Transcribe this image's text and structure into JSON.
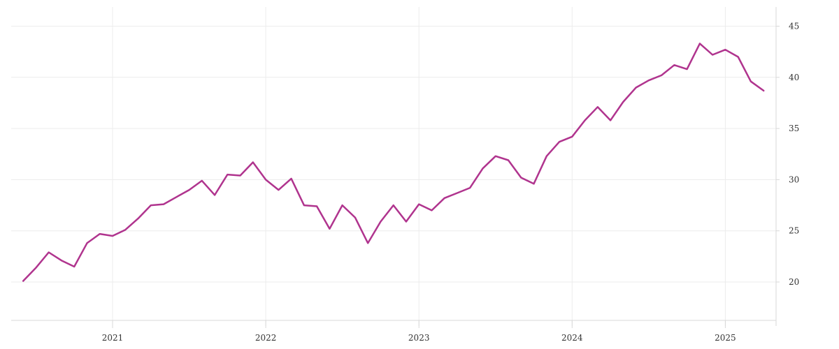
{
  "chart_data": {
    "type": "line",
    "title": "",
    "xlabel": "",
    "ylabel": "",
    "x_tick_labels": [
      "2021",
      "2022",
      "2023",
      "2024",
      "2025"
    ],
    "y_tick_labels": [
      "20",
      "25",
      "30",
      "35",
      "40",
      "45"
    ],
    "ylim": [
      15,
      46
    ],
    "xlim": [
      "2020-05",
      "2025-05"
    ],
    "y_axis_position": "right",
    "grid": true,
    "legend": "none",
    "line_color": "#b0348e",
    "series": [
      {
        "x": [
          "2020-06",
          "2020-07",
          "2020-08",
          "2020-09",
          "2020-10",
          "2020-11",
          "2020-12",
          "2021-01",
          "2021-02",
          "2021-03",
          "2021-04",
          "2021-05",
          "2021-06",
          "2021-07",
          "2021-08",
          "2021-09",
          "2021-10",
          "2021-11",
          "2021-12",
          "2022-01",
          "2022-02",
          "2022-03",
          "2022-04",
          "2022-05",
          "2022-06",
          "2022-07",
          "2022-08",
          "2022-09",
          "2022-10",
          "2022-11",
          "2022-12",
          "2023-01",
          "2023-02",
          "2023-03",
          "2023-04",
          "2023-05",
          "2023-06",
          "2023-07",
          "2023-08",
          "2023-09",
          "2023-10",
          "2023-11",
          "2023-12",
          "2024-01",
          "2024-02",
          "2024-03",
          "2024-04",
          "2024-05",
          "2024-06",
          "2024-07",
          "2024-08",
          "2024-09",
          "2024-10",
          "2024-11",
          "2024-12",
          "2025-01",
          "2025-02",
          "2025-03",
          "2025-04"
        ],
        "values": [
          20.1,
          21.4,
          22.9,
          22.1,
          21.5,
          23.8,
          24.7,
          24.5,
          25.1,
          26.2,
          27.5,
          27.6,
          28.3,
          29.0,
          29.9,
          28.5,
          30.5,
          30.4,
          31.7,
          30.0,
          29.0,
          30.1,
          27.5,
          27.4,
          25.2,
          27.5,
          26.3,
          23.8,
          25.9,
          27.5,
          25.9,
          27.6,
          27.0,
          28.2,
          28.7,
          29.2,
          31.1,
          32.3,
          31.9,
          30.2,
          29.6,
          32.3,
          33.7,
          34.2,
          35.8,
          37.1,
          35.8,
          37.6,
          39.0,
          39.7,
          40.2,
          41.2,
          40.8,
          43.3,
          42.2,
          42.7,
          42.0,
          39.6,
          38.7
        ]
      }
    ]
  }
}
